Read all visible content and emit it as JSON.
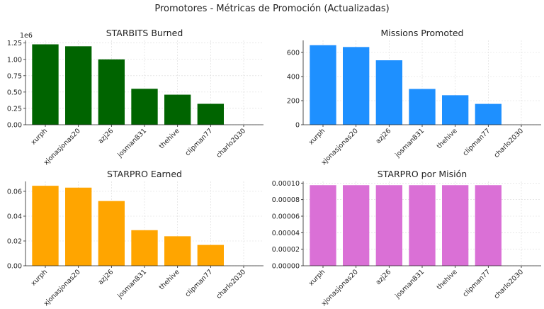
{
  "figure": {
    "title": "Promotores - Métricas de Promoción (Actualizadas)"
  },
  "chart_data": [
    {
      "type": "bar",
      "title": "STARBITS Burned",
      "xlabel": "",
      "ylabel": "",
      "categories": [
        "xurph",
        "xjonasjonas20",
        "azj26",
        "josman831",
        "thehive",
        "clipman77",
        "charlo2030"
      ],
      "values": [
        1230000,
        1200000,
        1000000,
        550000,
        460000,
        320000,
        0
      ],
      "ylim": [
        0,
        1290000
      ],
      "yticks": [
        0,
        0.25,
        0.5,
        0.75,
        1.0,
        1.25
      ],
      "ytick_labels": [
        "0.00",
        "0.25",
        "0.50",
        "0.75",
        "1.00",
        "1.25"
      ],
      "ytick_scale": 1000000,
      "offset_text": "1e6",
      "color": "#006400",
      "grid": true
    },
    {
      "type": "bar",
      "title": "Missions Promoted",
      "xlabel": "",
      "ylabel": "",
      "categories": [
        "xurph",
        "xjonasjonas20",
        "azj26",
        "josman831",
        "thehive",
        "clipman77",
        "charlo2030"
      ],
      "values": [
        660,
        645,
        535,
        297,
        245,
        173,
        0
      ],
      "ylim": [
        0,
        700
      ],
      "yticks": [
        0,
        200,
        400,
        600
      ],
      "ytick_labels": [
        "0",
        "200",
        "400",
        "600"
      ],
      "color": "#1e90ff",
      "grid": true
    },
    {
      "type": "bar",
      "title": "STARPRO Earned",
      "xlabel": "",
      "ylabel": "",
      "categories": [
        "xurph",
        "xjonasjonas20",
        "azj26",
        "josman831",
        "thehive",
        "clipman77",
        "charlo2030"
      ],
      "values": [
        0.0645,
        0.063,
        0.0522,
        0.0287,
        0.0238,
        0.0168,
        0
      ],
      "ylim": [
        0,
        0.068
      ],
      "yticks": [
        0,
        0.02,
        0.04,
        0.06
      ],
      "ytick_labels": [
        "0.00",
        "0.02",
        "0.04",
        "0.06"
      ],
      "color": "#ffa500",
      "grid": true
    },
    {
      "type": "bar",
      "title": "STARPRO por Misión",
      "xlabel": "",
      "ylabel": "",
      "categories": [
        "xurph",
        "xjonasjonas20",
        "azj26",
        "josman831",
        "thehive",
        "clipman77",
        "charlo2030"
      ],
      "values": [
        9.75e-05,
        9.75e-05,
        9.75e-05,
        9.75e-05,
        9.75e-05,
        9.75e-05,
        0
      ],
      "ylim": [
        0,
        0.000102
      ],
      "yticks": [
        0,
        2e-05,
        4e-05,
        6e-05,
        8e-05,
        0.0001
      ],
      "ytick_labels": [
        "0.00000",
        "0.00002",
        "0.00004",
        "0.00006",
        "0.00008",
        "0.00010"
      ],
      "color": "#da70d6",
      "grid": true
    }
  ]
}
